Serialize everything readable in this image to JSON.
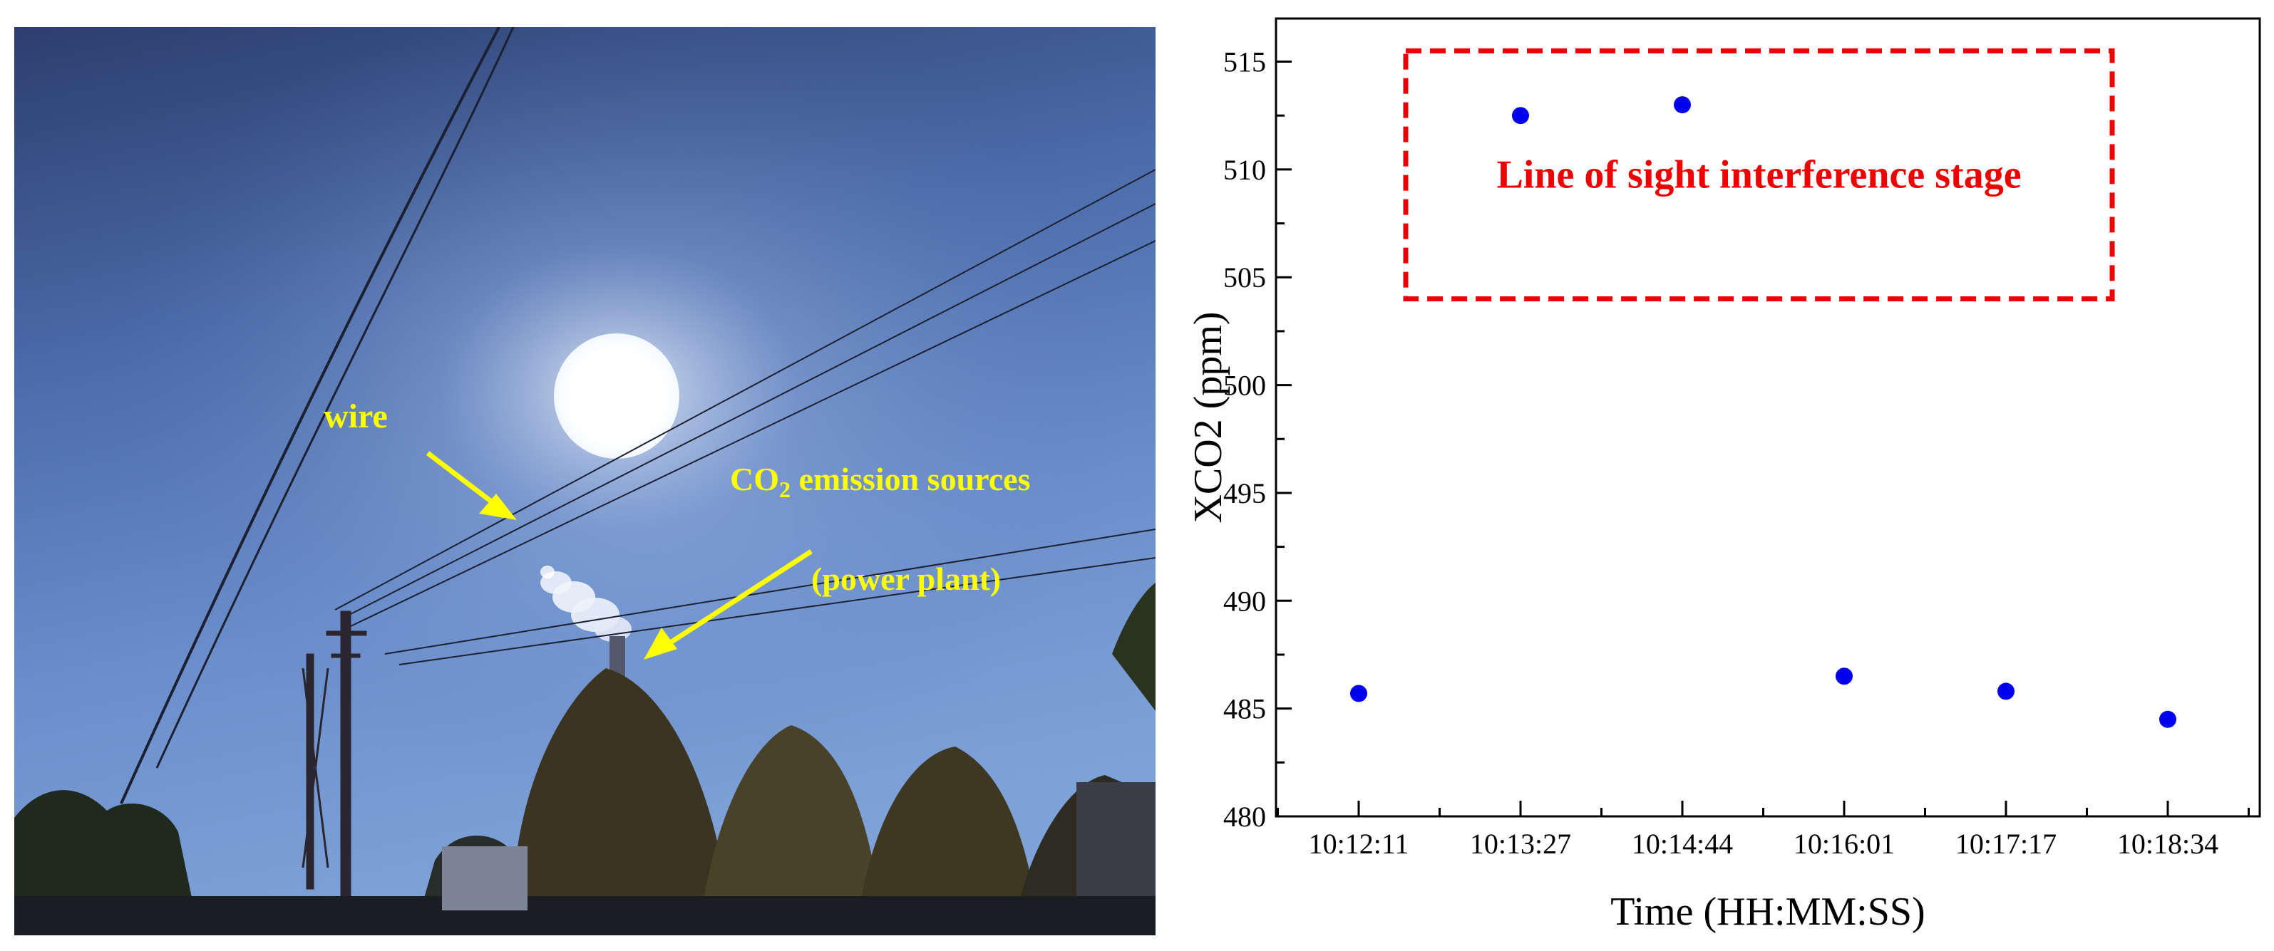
{
  "photo": {
    "annotations": {
      "wire": "wire",
      "co2_prefix": "CO",
      "co2_sub": "2",
      "co2_suffix": " emission sources",
      "power_plant": "(power plant)"
    },
    "annotation_color": "#ffff00"
  },
  "chart_data": {
    "type": "scatter",
    "xlabel": "Time (HH:MM:SS)",
    "ylabel": "XCO2 (ppm)",
    "categories": [
      "10:12:11",
      "10:13:27",
      "10:14:44",
      "10:16:01",
      "10:17:17",
      "10:18:34"
    ],
    "values": [
      485.7,
      512.5,
      513.0,
      486.5,
      485.8,
      484.5
    ],
    "ylim": [
      480,
      517
    ],
    "yticks": [
      480,
      485,
      490,
      495,
      500,
      505,
      510,
      515
    ],
    "grid": false,
    "point_color": "#0000ee",
    "annotation": {
      "text": "Line of sight interference stage",
      "color": "#ee0000",
      "x_range": [
        "10:12:11",
        "10:18:34"
      ],
      "y_range": [
        504,
        515.5
      ]
    }
  }
}
